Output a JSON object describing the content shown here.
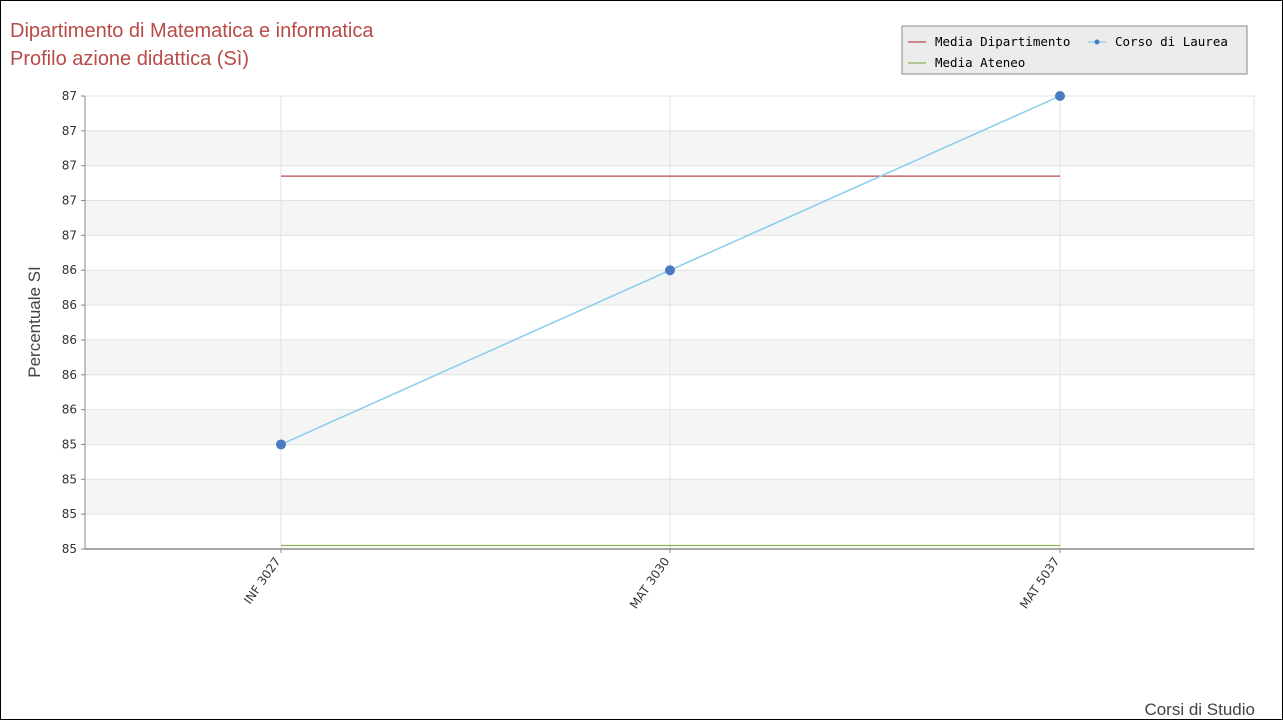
{
  "chart_data": {
    "type": "line",
    "title": "Dipartimento di Matematica e informatica",
    "subtitle": "Profilo azione didattica (Sì)",
    "xlabel": "Corsi di Studio",
    "ylabel": "Percentuale SI",
    "categories": [
      "INF 3027",
      "MAT 3030",
      "MAT 5037"
    ],
    "y_tick_labels": [
      "85",
      "85",
      "85",
      "85",
      "86",
      "86",
      "86",
      "86",
      "86",
      "87",
      "87",
      "87",
      "87",
      "87"
    ],
    "ylim": [
      85.0,
      87.6
    ],
    "series": [
      {
        "name": "Media Dipartimento",
        "kind": "reference",
        "values": [
          87.14,
          87.14,
          87.14
        ],
        "color": "#b94a48"
      },
      {
        "name": "Corso di Laurea",
        "kind": "line-markers",
        "values": [
          85.6,
          86.6,
          87.6
        ],
        "color": "#87ceeb",
        "marker_color": "#4a7ac2"
      },
      {
        "name": "Media Ateneo",
        "kind": "reference",
        "values": [
          85.02,
          85.02,
          85.02
        ],
        "color": "#8fb35a"
      }
    ],
    "grid": true,
    "legend": {
      "position": "top-right"
    },
    "colors": {
      "title": "#b94a48",
      "band": "#f5f5f5",
      "grid": "#e2e2e2",
      "axis": "#888888",
      "legend_bg": "#ececec",
      "legend_border": "#888888"
    }
  }
}
